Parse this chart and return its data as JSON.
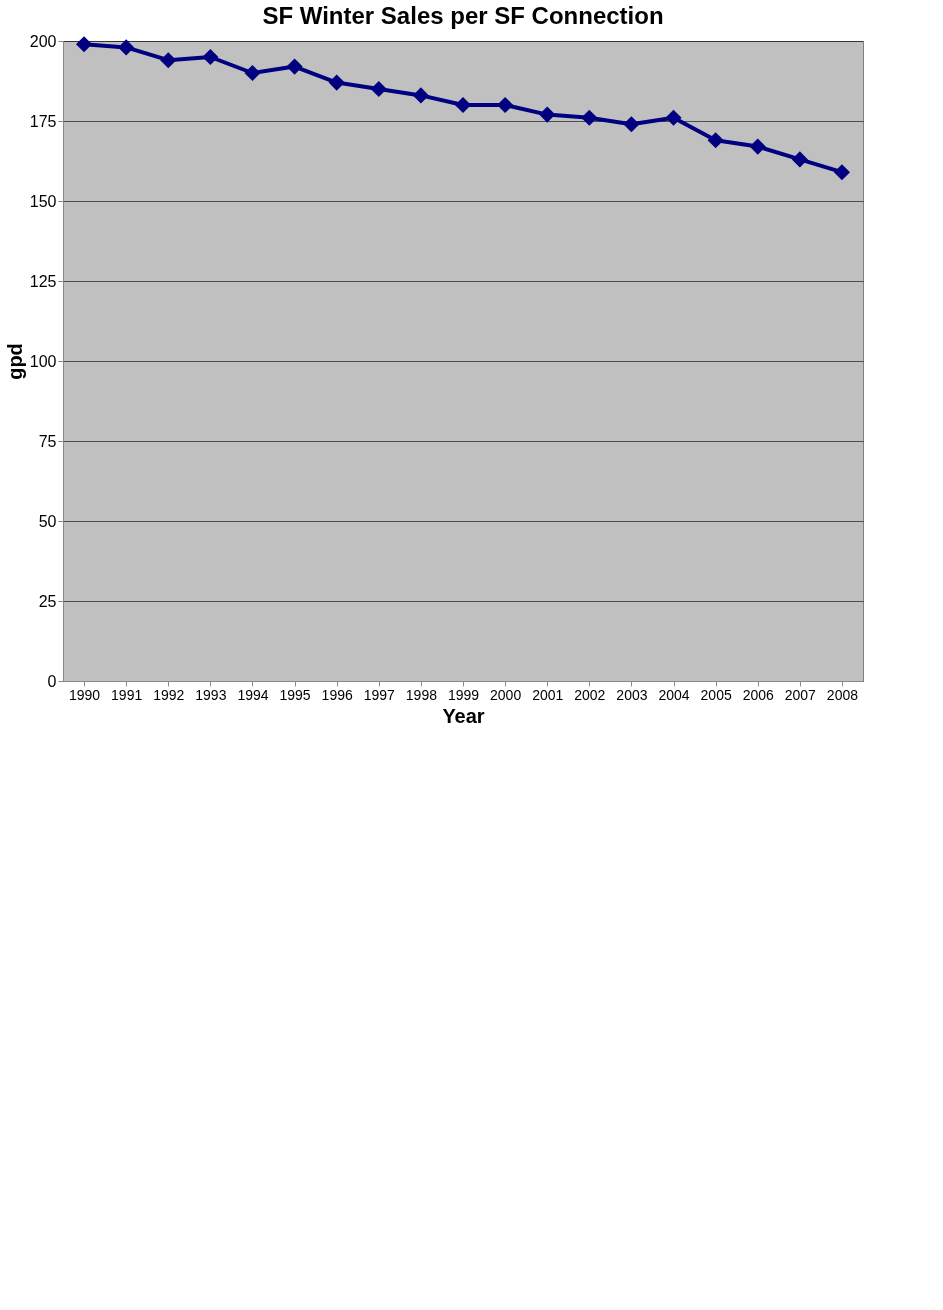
{
  "chart_data": {
    "type": "line",
    "title": "SF Winter Sales per SF Connection",
    "xlabel": "Year",
    "ylabel": "gpd",
    "categories": [
      "1990",
      "1991",
      "1992",
      "1993",
      "1994",
      "1995",
      "1996",
      "1997",
      "1998",
      "1999",
      "2000",
      "2001",
      "2002",
      "2003",
      "2004",
      "2005",
      "2006",
      "2007",
      "2008"
    ],
    "series": [
      {
        "color": "#000080",
        "values": [
          199,
          198,
          194,
          195,
          190,
          192,
          187,
          185,
          183,
          180,
          180,
          177,
          176,
          174,
          176,
          169,
          167,
          163,
          159
        ]
      }
    ],
    "ylim": [
      0,
      200
    ],
    "yticks": [
      0,
      25,
      50,
      75,
      100,
      125,
      150,
      175,
      200
    ],
    "grid": "y",
    "marker": "diamond",
    "line_style": "solid"
  }
}
